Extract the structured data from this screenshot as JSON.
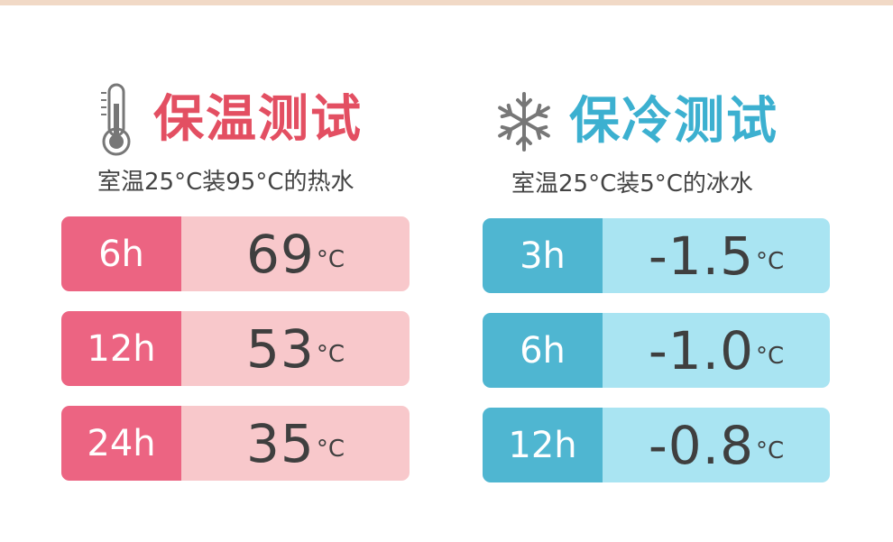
{
  "warm": {
    "title": "保温测试",
    "subtitle": "室温25°C装95°C的热水",
    "icon": "thermometer-icon",
    "accent": "#e34f62",
    "rows": [
      {
        "duration": "6h",
        "value": "69",
        "unit": "°C"
      },
      {
        "duration": "12h",
        "value": "53",
        "unit": "°C"
      },
      {
        "duration": "24h",
        "value": "35",
        "unit": "°C"
      }
    ]
  },
  "cold": {
    "title": "保冷测试",
    "subtitle": "室温25°C装5°C的冰水",
    "icon": "snowflake-icon",
    "accent": "#3cb0d0",
    "rows": [
      {
        "duration": "3h",
        "value": "-1.5",
        "unit": "°C"
      },
      {
        "duration": "6h",
        "value": "-1.0",
        "unit": "°C"
      },
      {
        "duration": "12h",
        "value": "-0.8",
        "unit": "°C"
      }
    ]
  }
}
